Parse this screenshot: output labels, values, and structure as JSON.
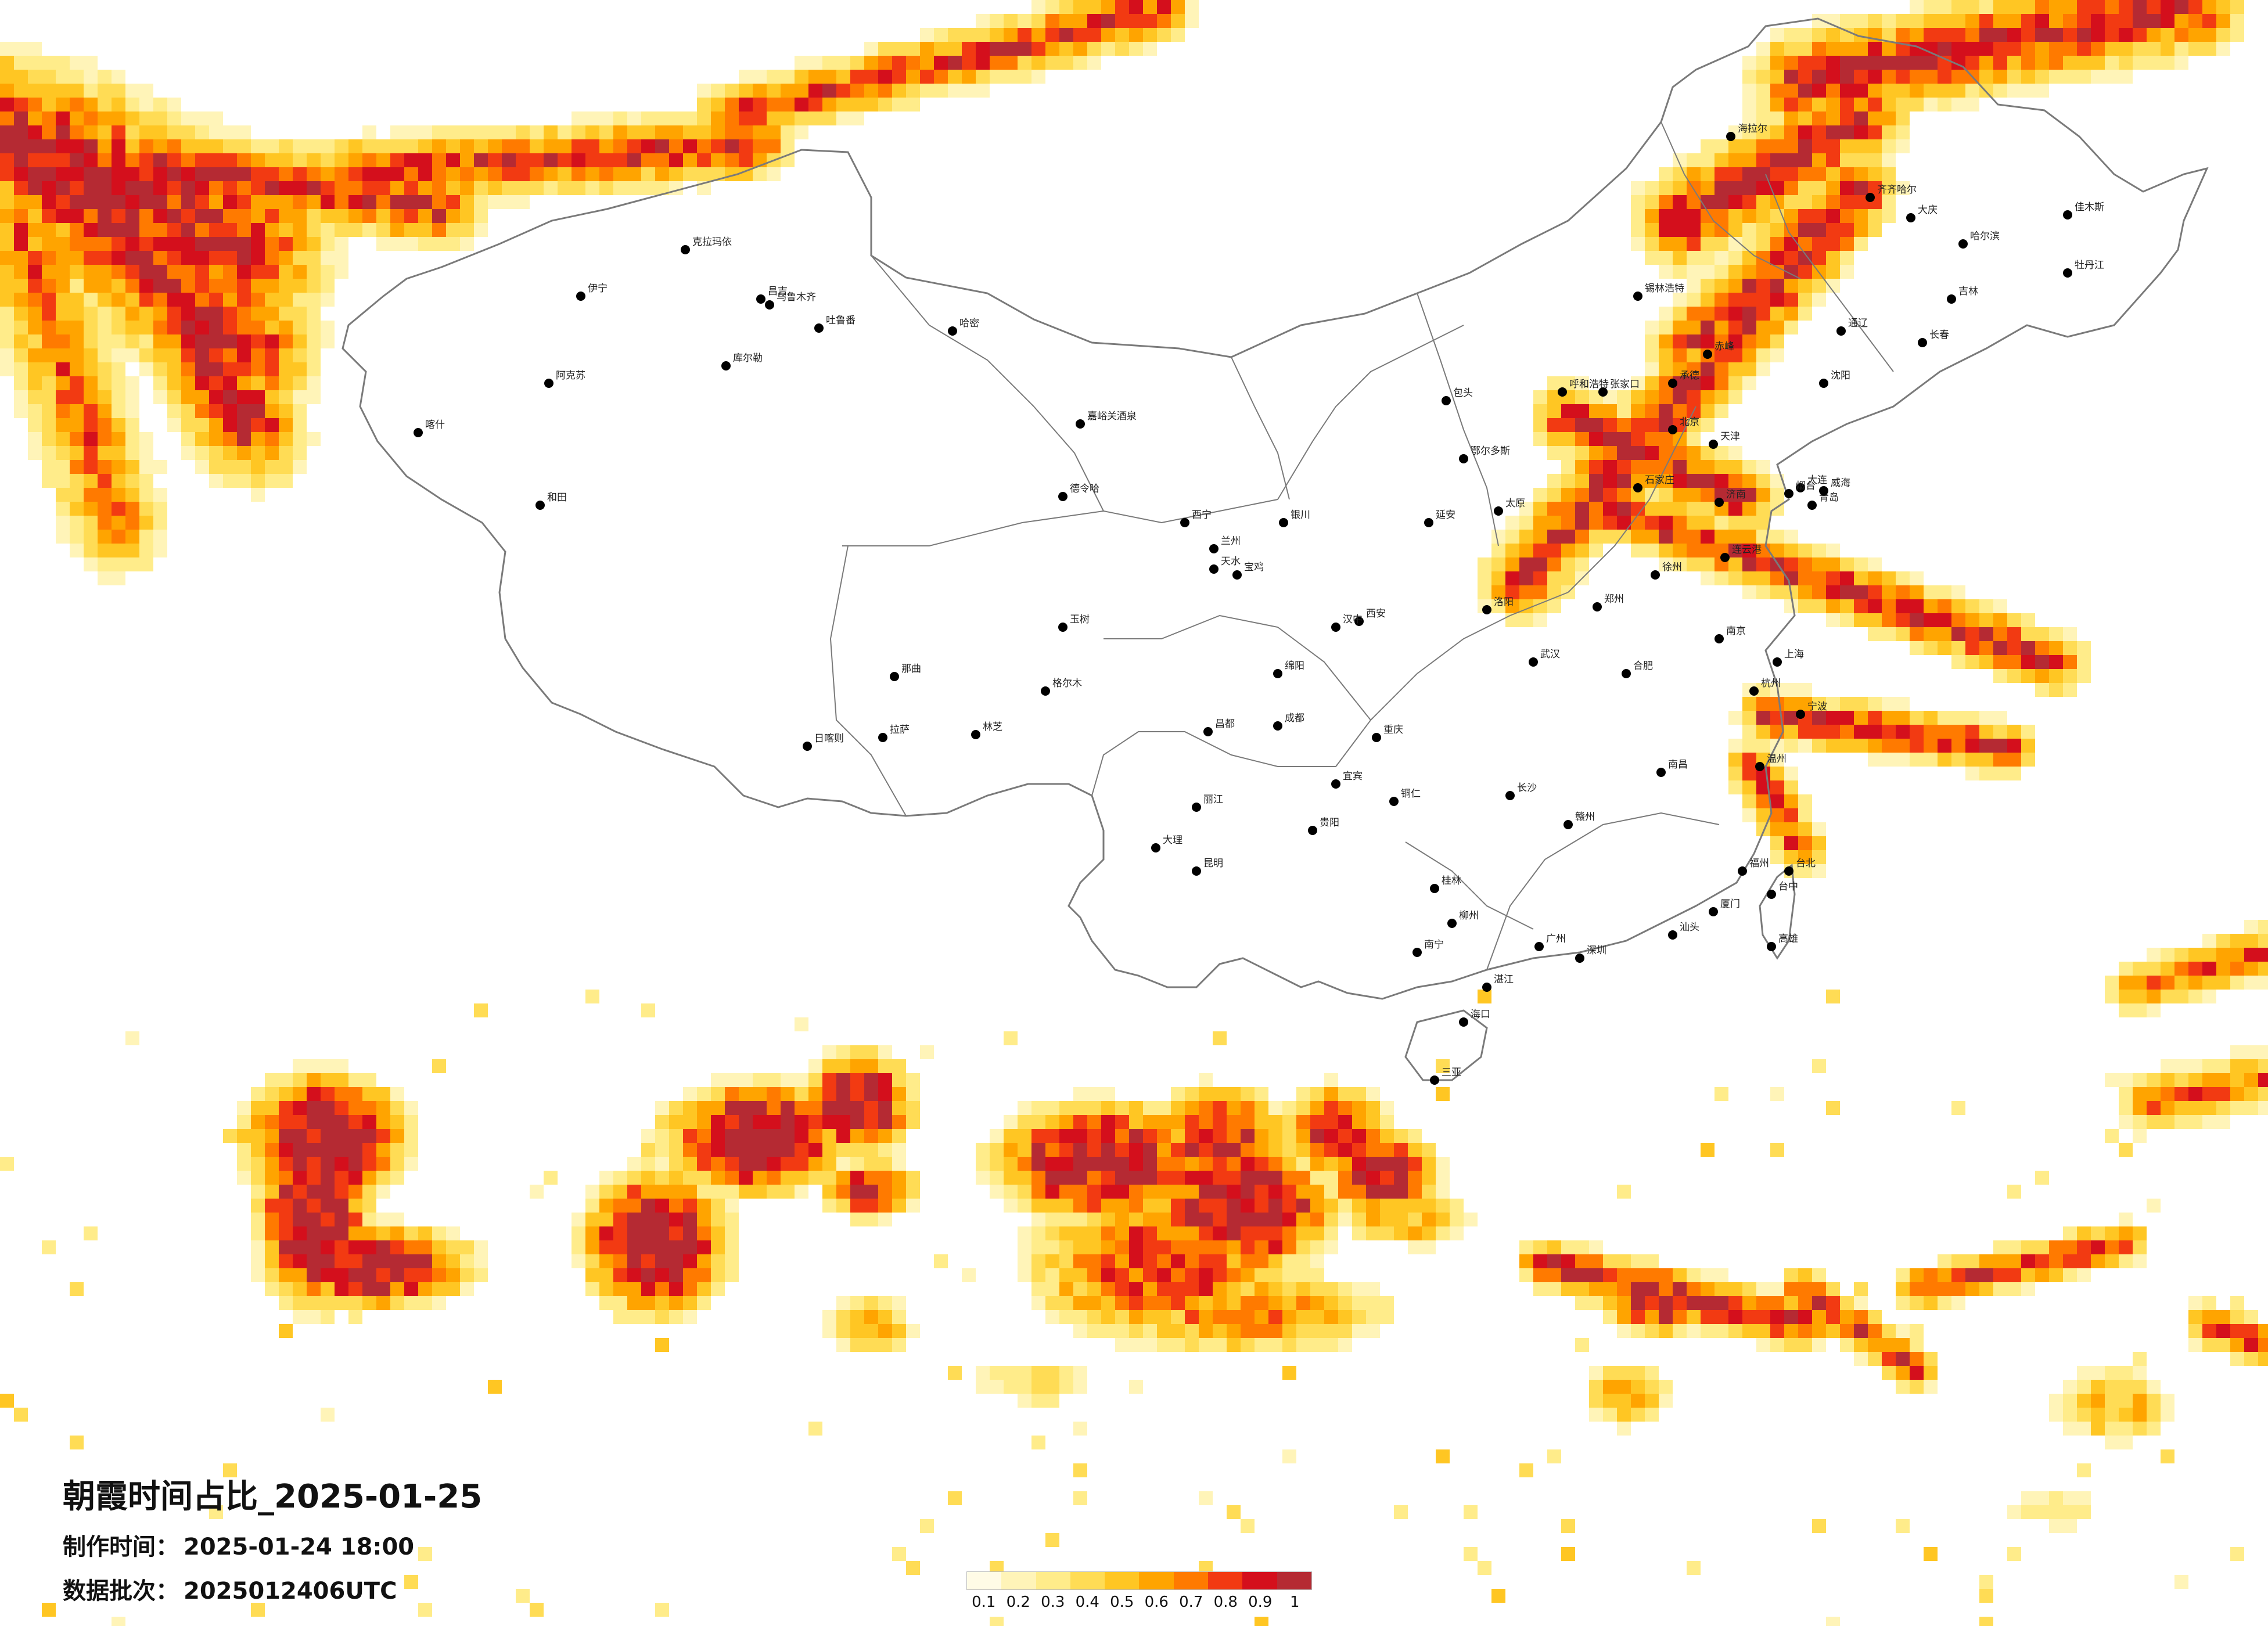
{
  "title": "朝霞时间占比_2025-01-25",
  "production_time": {
    "label": "制作时间：",
    "value": "2025-01-24 18:00"
  },
  "data_batch": {
    "label": "数据批次：",
    "value": "2025012406UTC"
  },
  "legend": {
    "ticks": [
      "0.1",
      "0.2",
      "0.3",
      "0.4",
      "0.5",
      "0.6",
      "0.7",
      "0.8",
      "0.9",
      "1"
    ],
    "colors": [
      "#fffbe6",
      "#fff4b8",
      "#ffec8a",
      "#ffdc55",
      "#ffc623",
      "#ffa400",
      "#ff7a00",
      "#f23a12",
      "#d40f1c",
      "#b52a33"
    ]
  },
  "cities": [
    {
      "name": "克拉玛依"
    },
    {
      "name": "昌吉"
    },
    {
      "name": "乌鲁木齐"
    },
    {
      "name": "吐鲁番"
    },
    {
      "name": "哈密"
    },
    {
      "name": "伊宁"
    },
    {
      "name": "库尔勒"
    },
    {
      "name": "阿克苏"
    },
    {
      "name": "喀什"
    },
    {
      "name": "和田"
    },
    {
      "name": "嘉峪关酒泉"
    },
    {
      "name": "西宁"
    },
    {
      "name": "兰州"
    },
    {
      "name": "银川"
    },
    {
      "name": "德令哈"
    },
    {
      "name": "格尔木"
    },
    {
      "name": "玉树"
    },
    {
      "name": "拉萨"
    },
    {
      "name": "日喀则"
    },
    {
      "name": "林芝"
    },
    {
      "name": "那曲"
    },
    {
      "name": "昌都"
    },
    {
      "name": "呼和浩特"
    },
    {
      "name": "包头"
    },
    {
      "name": "鄂尔多斯"
    },
    {
      "name": "太原"
    },
    {
      "name": "西安"
    },
    {
      "name": "延安"
    },
    {
      "name": "郑州"
    },
    {
      "name": "石家庄"
    },
    {
      "name": "北京"
    },
    {
      "name": "天津"
    },
    {
      "name": "张家口"
    },
    {
      "name": "承德"
    },
    {
      "name": "沈阳"
    },
    {
      "name": "大连"
    },
    {
      "name": "长春"
    },
    {
      "name": "吉林"
    },
    {
      "name": "哈尔滨"
    },
    {
      "name": "齐齐哈尔"
    },
    {
      "name": "大庆"
    },
    {
      "name": "牡丹江"
    },
    {
      "name": "佳木斯"
    },
    {
      "name": "海拉尔"
    },
    {
      "name": "锡林浩特"
    },
    {
      "name": "赤峰"
    },
    {
      "name": "通辽"
    },
    {
      "name": "济南"
    },
    {
      "name": "青岛"
    },
    {
      "name": "烟台"
    },
    {
      "name": "威海"
    },
    {
      "name": "连云港"
    },
    {
      "name": "南京"
    },
    {
      "name": "上海"
    },
    {
      "name": "杭州"
    },
    {
      "name": "合肥"
    },
    {
      "name": "武汉"
    },
    {
      "name": "长沙"
    },
    {
      "name": "南昌"
    },
    {
      "name": "福州"
    },
    {
      "name": "厦门"
    },
    {
      "name": "广州"
    },
    {
      "name": "深圳"
    },
    {
      "name": "南宁"
    },
    {
      "name": "海口"
    },
    {
      "name": "三亚"
    },
    {
      "name": "贵阳"
    },
    {
      "name": "昆明"
    },
    {
      "name": "成都"
    },
    {
      "name": "重庆"
    },
    {
      "name": "大理"
    },
    {
      "name": "丽江"
    },
    {
      "name": "台北"
    },
    {
      "name": "台中"
    },
    {
      "name": "高雄"
    },
    {
      "name": "宜宾"
    },
    {
      "name": "绵阳"
    },
    {
      "name": "汉中"
    },
    {
      "name": "宝鸡"
    },
    {
      "name": "天水"
    },
    {
      "name": "洛阳"
    },
    {
      "name": "徐州"
    },
    {
      "name": "温州"
    },
    {
      "name": "宁波"
    },
    {
      "name": "赣州"
    },
    {
      "name": "桂林"
    },
    {
      "name": "柳州"
    },
    {
      "name": "湛江"
    },
    {
      "name": "汕头"
    },
    {
      "name": "铜仁"
    }
  ]
}
